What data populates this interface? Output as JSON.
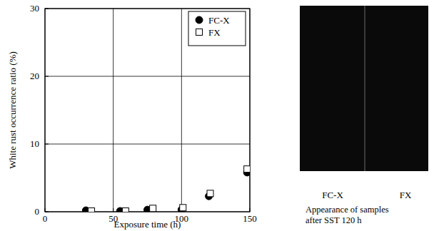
{
  "chart_data": {
    "type": "scatter",
    "x_label": "Exposure time (h)",
    "y_label": "White rust occurrence ratio (%)",
    "xlim": [
      0,
      150
    ],
    "xticks": [
      0,
      50,
      100,
      150
    ],
    "ylim": [
      0,
      30
    ],
    "yticks": [
      0,
      10,
      20,
      30
    ],
    "grid": true,
    "legend": "upper right",
    "series": [
      {
        "name": "FC-X",
        "color": "#000000",
        "marker": "filled-circle",
        "x": [
          30,
          55,
          75,
          100,
          120,
          148
        ],
        "values": [
          0.2,
          0.1,
          0.3,
          0.3,
          2.3,
          5.8
        ]
      },
      {
        "name": "FX",
        "color": "#000000",
        "marker": "open-square",
        "x": [
          34,
          59,
          79,
          101,
          121,
          148
        ],
        "values": [
          0.1,
          0.1,
          0.5,
          0.6,
          2.7,
          6.3
        ]
      }
    ]
  },
  "photo": {
    "labels": [
      "FC-X",
      "FX"
    ],
    "caption": [
      "Appearance of samples",
      "after SST 120 h"
    ]
  }
}
